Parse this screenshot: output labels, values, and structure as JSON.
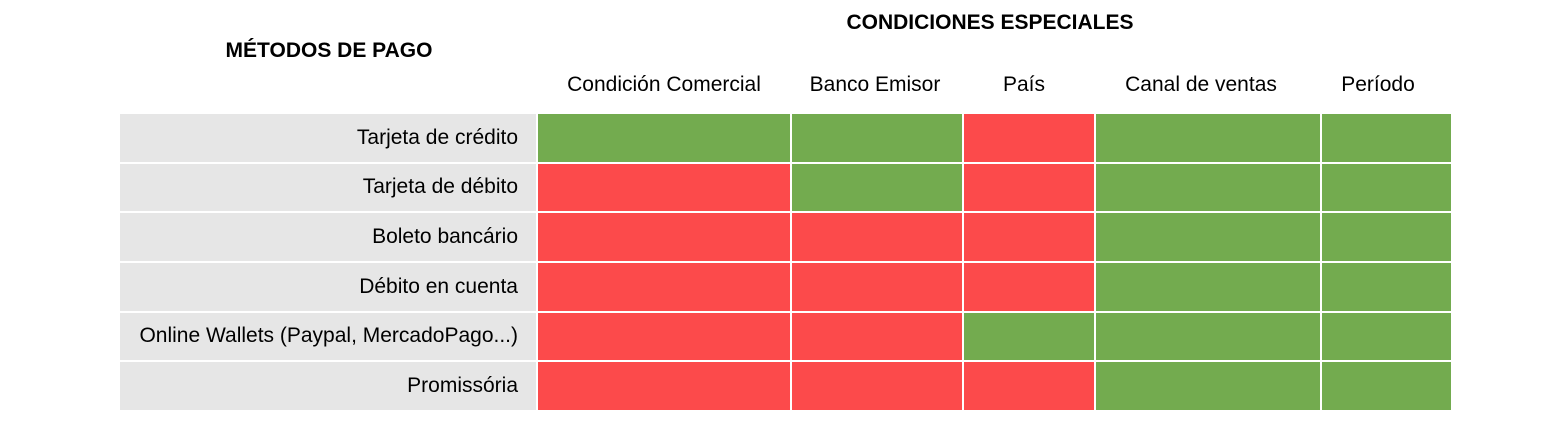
{
  "titles": {
    "payment_methods": "MÉTODOS DE PAGO",
    "special_conditions": "CONDICIONES ESPECIALES"
  },
  "colors": {
    "yes": "#73ab4f",
    "no": "#fc4a4b"
  },
  "columns": [
    "Condición Comercial",
    "Banco Emisor",
    "País",
    "Canal de ventas",
    "Período"
  ],
  "rows": [
    {
      "label": "Tarjeta de crédito",
      "cells": [
        "green",
        "green",
        "red",
        "green",
        "green"
      ]
    },
    {
      "label": "Tarjeta de débito",
      "cells": [
        "red",
        "green",
        "red",
        "green",
        "green"
      ]
    },
    {
      "label": "Boleto bancário",
      "cells": [
        "red",
        "red",
        "red",
        "green",
        "green"
      ]
    },
    {
      "label": "Débito en cuenta",
      "cells": [
        "red",
        "red",
        "red",
        "green",
        "green"
      ]
    },
    {
      "label": "Online Wallets (Paypal, MercadoPago...)",
      "cells": [
        "red",
        "red",
        "green",
        "green",
        "green"
      ]
    },
    {
      "label": "Promissória",
      "cells": [
        "red",
        "red",
        "red",
        "green",
        "green"
      ]
    }
  ]
}
